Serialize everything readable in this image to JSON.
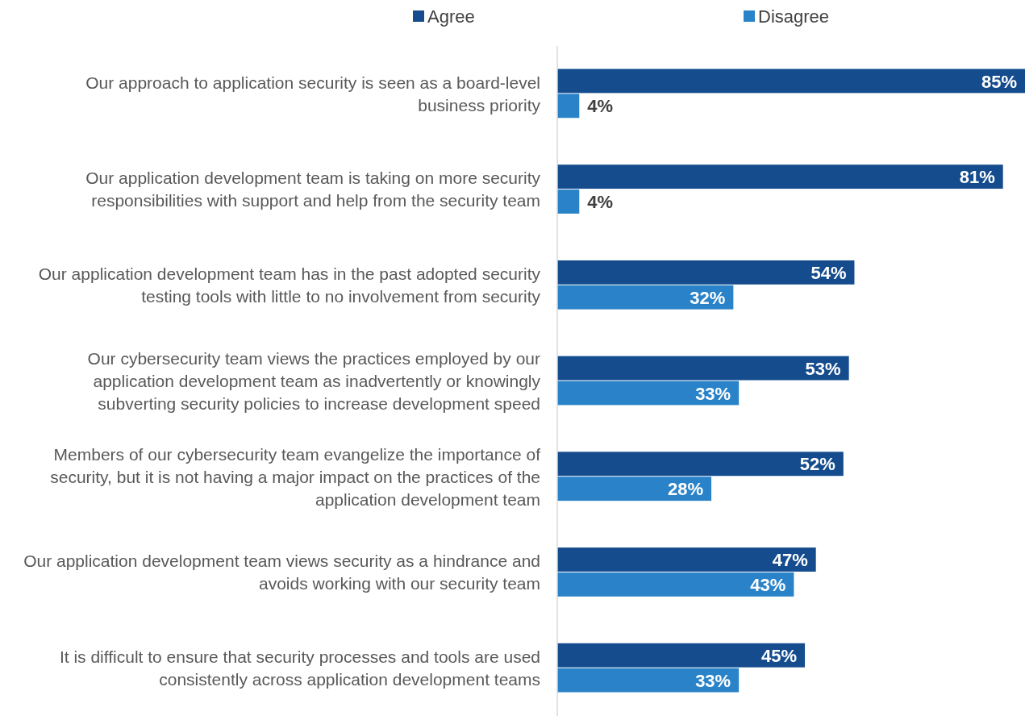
{
  "chart_data": {
    "type": "bar",
    "orientation": "horizontal",
    "categories": [
      "Our approach to application security is seen as a board-level business priority",
      "Our application development team is taking on more security responsibilities with support and help from the security team",
      "Our application development team has in the past adopted security testing tools with little to no involvement from security",
      "Our cybersecurity team views the practices employed by our application development team as inadvertently or knowingly subverting security policies to increase development speed",
      "Members of our cybersecurity team evangelize the importance of security, but it is not having a major impact on the practices of the application development team",
      "Our application development team views security as a hindrance and avoids working with our security team",
      "It is difficult to ensure that security processes and tools are used consistently across application development teams"
    ],
    "series": [
      {
        "name": "Agree",
        "color": "#154c8e",
        "values": [
          85,
          81,
          54,
          53,
          52,
          47,
          45
        ],
        "value_labels": [
          "85%",
          "81%",
          "54%",
          "53%",
          "52%",
          "47%",
          "45%"
        ]
      },
      {
        "name": "Disagree",
        "color": "#2a83c8",
        "values": [
          4,
          4,
          32,
          33,
          28,
          43,
          33
        ],
        "value_labels": [
          "4%",
          "4%",
          "32%",
          "33%",
          "28%",
          "43%",
          "33%"
        ]
      }
    ],
    "legend": "top"
  }
}
